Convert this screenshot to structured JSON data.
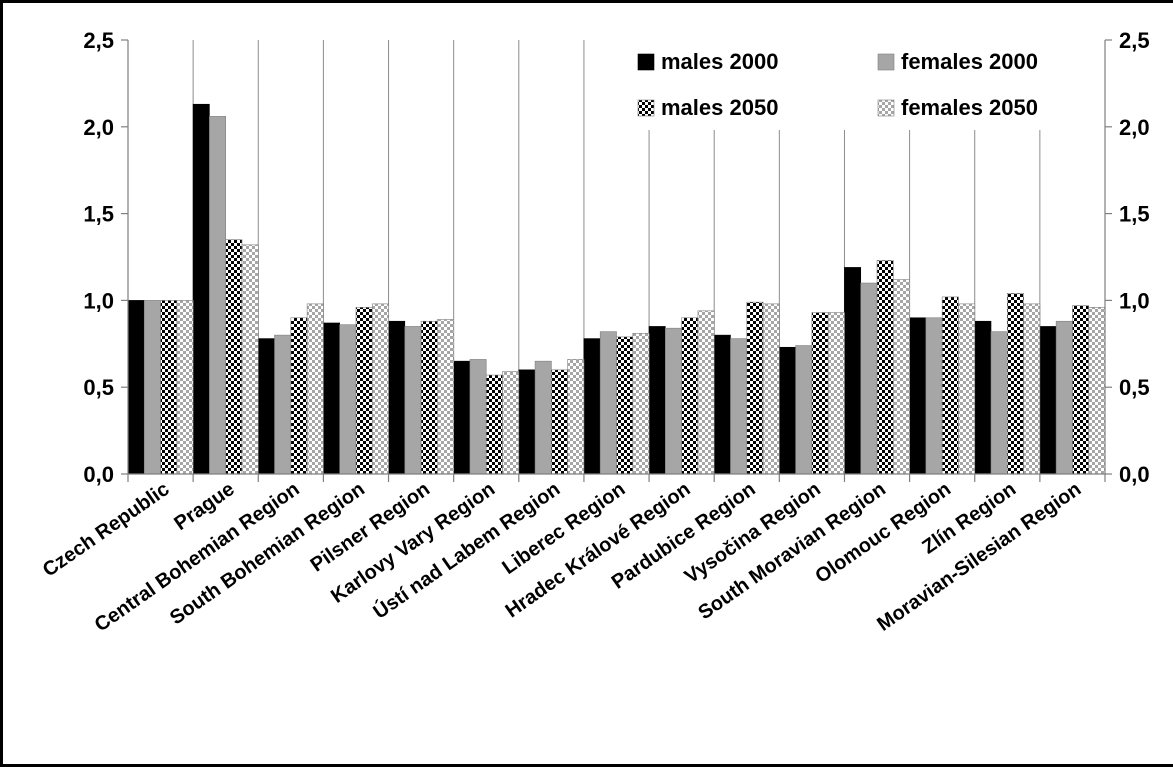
{
  "chart_data": {
    "type": "bar",
    "title": "",
    "xlabel": "",
    "ylabel": "",
    "ylim": [
      0,
      2.5
    ],
    "yticks": [
      "0,0",
      "0,5",
      "1,0",
      "1,5",
      "2,0",
      "2,5"
    ],
    "ytick_values": [
      0,
      0.5,
      1.0,
      1.5,
      2.0,
      2.5
    ],
    "secondary_y_axis": true,
    "grid": "vertical",
    "legend_position": "top-right",
    "categories": [
      "Czech Republic",
      "Prague",
      "Central Bohemian Region",
      "South Bohemian Region",
      "Pilsner Region",
      "Karlovy Vary Region",
      "Ústí nad Labem Region",
      "Liberec Region",
      "Hradec Králové Region",
      "Pardubice Region",
      "Vysočina Region",
      "South Moravian Region",
      "Olomouc Region",
      "Zlín Region",
      "Moravian-Silesian Region"
    ],
    "series": [
      {
        "name": "males 2000",
        "pattern": "solid",
        "color": "#000000",
        "values": [
          1.0,
          2.13,
          0.78,
          0.87,
          0.88,
          0.65,
          0.6,
          0.78,
          0.85,
          0.8,
          0.73,
          1.19,
          0.9,
          0.88,
          0.85
        ]
      },
      {
        "name": "females 2000",
        "pattern": "solid",
        "color": "#a6a6a6",
        "values": [
          1.0,
          2.06,
          0.8,
          0.86,
          0.85,
          0.66,
          0.65,
          0.82,
          0.84,
          0.78,
          0.74,
          1.1,
          0.9,
          0.82,
          0.88
        ]
      },
      {
        "name": "males 2050",
        "pattern": "checker-dark",
        "color": "#000000",
        "values": [
          1.0,
          1.35,
          0.9,
          0.96,
          0.88,
          0.57,
          0.6,
          0.79,
          0.9,
          0.99,
          0.93,
          1.23,
          1.02,
          1.04,
          0.97
        ]
      },
      {
        "name": "females 2050",
        "pattern": "checker-light",
        "color": "#bfbfbf",
        "values": [
          1.0,
          1.32,
          0.98,
          0.98,
          0.89,
          0.59,
          0.66,
          0.81,
          0.94,
          0.98,
          0.93,
          1.12,
          0.98,
          0.98,
          0.96
        ]
      }
    ]
  }
}
